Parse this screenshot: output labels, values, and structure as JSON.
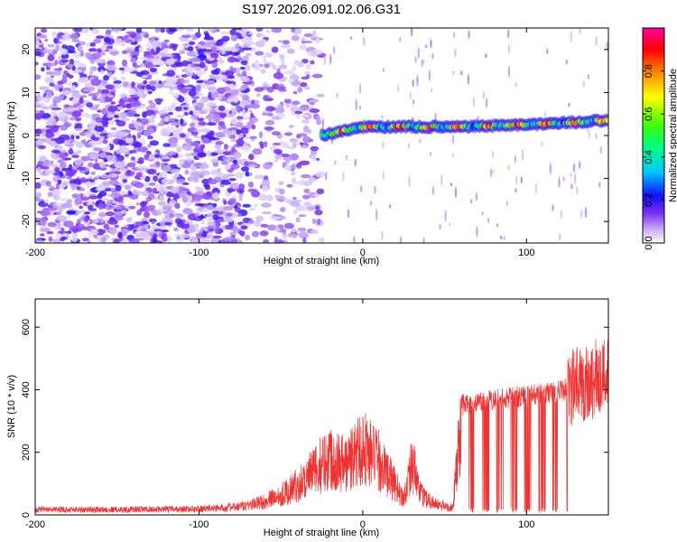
{
  "chart_data": [
    {
      "type": "heatmap",
      "title": "S197.2026.091.02.06.G31",
      "xlabel": "Height of straight line (km)",
      "ylabel": "Frequency (Hz)",
      "xlim": [
        -200,
        150
      ],
      "ylim": [
        -25,
        25
      ],
      "x_ticks": [
        -200,
        -100,
        0,
        100
      ],
      "y_ticks": [
        -20,
        -10,
        0,
        10,
        20
      ],
      "colorbar": {
        "label": "Normalized spectral amplitude",
        "range": [
          0,
          1
        ],
        "ticks": [
          0.0,
          0.2,
          0.4,
          0.6,
          0.8
        ],
        "tick_labels": [
          "0.0",
          "0.2",
          "0.4",
          "0.6",
          "0.8"
        ]
      },
      "features": [
        {
          "name": "carrier-track",
          "x_range": [
            -25,
            150
          ],
          "frequency_at_x": [
            [
              -25,
              0
            ],
            [
              0,
              2
            ],
            [
              50,
              2
            ],
            [
              100,
              2.5
            ],
            [
              150,
              3.5
            ]
          ]
        },
        {
          "name": "noise-region",
          "x_range": [
            -200,
            -25
          ],
          "frequency_range": [
            -25,
            25
          ]
        }
      ]
    },
    {
      "type": "line",
      "title": "",
      "xlabel": "Height of straight line (km)",
      "ylabel": "SNR (10 * v/v)",
      "xlim": [
        -200,
        150
      ],
      "ylim": [
        0,
        690
      ],
      "x_ticks": [
        -200,
        -100,
        0,
        100
      ],
      "y_ticks": [
        0,
        200,
        400,
        600
      ],
      "series": [
        {
          "name": "SNR",
          "color": "#ee3333",
          "envelope": [
            [
              -200,
              20
            ],
            [
              -150,
              20
            ],
            [
              -100,
              22
            ],
            [
              -75,
              30
            ],
            [
              -60,
              50
            ],
            [
              -45,
              90
            ],
            [
              -30,
              160
            ],
            [
              -20,
              220
            ],
            [
              -10,
              190
            ],
            [
              0,
              260
            ],
            [
              10,
              200
            ],
            [
              20,
              110
            ],
            [
              25,
              60
            ],
            [
              30,
              200
            ],
            [
              35,
              80
            ],
            [
              45,
              40
            ],
            [
              55,
              25
            ],
            [
              60,
              350
            ],
            [
              80,
              370
            ],
            [
              100,
              380
            ],
            [
              120,
              395
            ],
            [
              135,
              420
            ],
            [
              150,
              450
            ]
          ]
        }
      ]
    }
  ]
}
